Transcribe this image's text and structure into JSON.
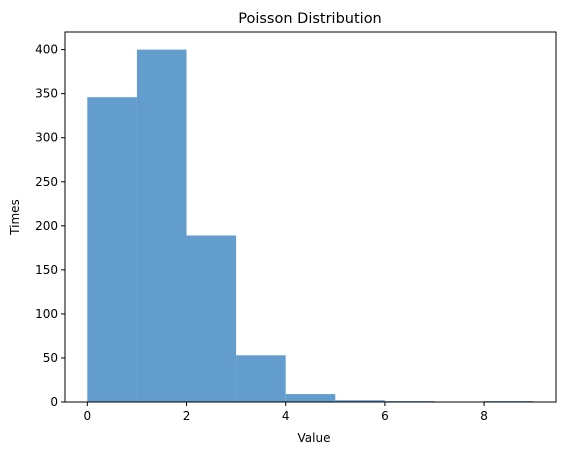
{
  "chart_data": {
    "type": "bar",
    "title": "Poisson Distribution",
    "xlabel": "Value",
    "ylabel": "Times",
    "bins": [
      {
        "start": 0,
        "end": 1,
        "value": 346
      },
      {
        "start": 1,
        "end": 2,
        "value": 400
      },
      {
        "start": 2,
        "end": 3,
        "value": 189
      },
      {
        "start": 3,
        "end": 4,
        "value": 53
      },
      {
        "start": 4,
        "end": 5,
        "value": 9
      },
      {
        "start": 5,
        "end": 6,
        "value": 2
      },
      {
        "start": 6,
        "end": 7,
        "value": 1
      },
      {
        "start": 7,
        "end": 8,
        "value": 0
      },
      {
        "start": 8,
        "end": 9,
        "value": 1
      }
    ],
    "xlim": [
      -0.45,
      9.45
    ],
    "ylim": [
      0,
      420
    ],
    "xticks": [
      0,
      2,
      4,
      6,
      8
    ],
    "yticks": [
      0,
      50,
      100,
      150,
      200,
      250,
      300,
      350,
      400
    ],
    "grid": false,
    "bar_color": "#4c8fc6",
    "bar_opacity": 0.88
  }
}
